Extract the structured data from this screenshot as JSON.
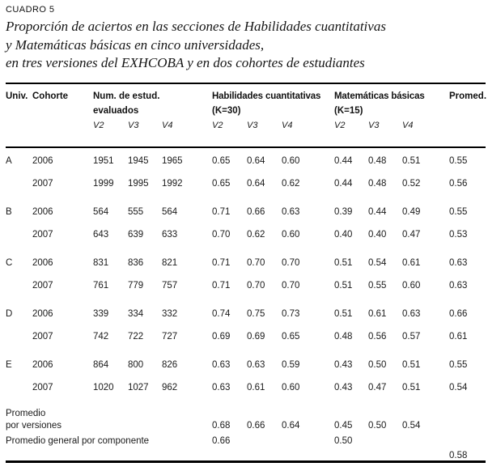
{
  "title": {
    "label": "CUADRO 5",
    "lines": [
      "Proporción de aciertos en las secciones de Habilidades cuantitativas",
      "y Matemáticas básicas en cinco universidades,",
      "en tres versiones del EXHCOBA y en dos cohortes de estudiantes"
    ]
  },
  "table": {
    "header": {
      "univ": "Univ.",
      "cohorte": "Cohorte",
      "num_line1": "Num. de estud.",
      "num_line2": "evaluados",
      "hab_line1": "Habilidades cuantitativas",
      "hab_line2": "(K=30)",
      "mat_line1": "Matemáticas básicas",
      "mat_line2": "(K=15)",
      "promed": "Promed.",
      "versions": [
        "V2",
        "V3",
        "V4"
      ]
    },
    "rows": [
      {
        "univ": "A",
        "cohorte": "2006",
        "num": [
          "1951",
          "1945",
          "1965"
        ],
        "hab": [
          "0.65",
          "0.64",
          "0.60"
        ],
        "mat": [
          "0.44",
          "0.48",
          "0.51"
        ],
        "promed": "0.55"
      },
      {
        "univ": "",
        "cohorte": "2007",
        "num": [
          "1999",
          "1995",
          "1992"
        ],
        "hab": [
          "0.65",
          "0.64",
          "0.62"
        ],
        "mat": [
          "0.44",
          "0.48",
          "0.52"
        ],
        "promed": "0.56"
      },
      {
        "univ": "B",
        "cohorte": "2006",
        "num": [
          "564",
          "555",
          "564"
        ],
        "hab": [
          "0.71",
          "0.66",
          "0.63"
        ],
        "mat": [
          "0.39",
          "0.44",
          "0.49"
        ],
        "promed": "0.55"
      },
      {
        "univ": "",
        "cohorte": "2007",
        "num": [
          "643",
          "639",
          "633"
        ],
        "hab": [
          "0.70",
          "0.62",
          "0.60"
        ],
        "mat": [
          "0.40",
          "0.40",
          "0.47"
        ],
        "promed": "0.53"
      },
      {
        "univ": "C",
        "cohorte": "2006",
        "num": [
          "831",
          "836",
          "821"
        ],
        "hab": [
          "0.71",
          "0.70",
          "0.70"
        ],
        "mat": [
          "0.51",
          "0.54",
          "0.61"
        ],
        "promed": "0.63"
      },
      {
        "univ": "",
        "cohorte": "2007",
        "num": [
          "761",
          "779",
          "757"
        ],
        "hab": [
          "0.71",
          "0.70",
          "0.70"
        ],
        "mat": [
          "0.51",
          "0.55",
          "0.60"
        ],
        "promed": "0.63"
      },
      {
        "univ": "D",
        "cohorte": "2006",
        "num": [
          "339",
          "334",
          "332"
        ],
        "hab": [
          "0.74",
          "0.75",
          "0.73"
        ],
        "mat": [
          "0.51",
          "0.61",
          "0.63"
        ],
        "promed": "0.66"
      },
      {
        "univ": "",
        "cohorte": "2007",
        "num": [
          "742",
          "722",
          "727"
        ],
        "hab": [
          "0.69",
          "0.69",
          "0.65"
        ],
        "mat": [
          "0.48",
          "0.56",
          "0.57"
        ],
        "promed": "0.61"
      },
      {
        "univ": "E",
        "cohorte": "2006",
        "num": [
          "864",
          "800",
          "826"
        ],
        "hab": [
          "0.63",
          "0.63",
          "0.59"
        ],
        "mat": [
          "0.43",
          "0.50",
          "0.51"
        ],
        "promed": "0.55"
      },
      {
        "univ": "",
        "cohorte": "2007",
        "num": [
          "1020",
          "1027",
          "962"
        ],
        "hab": [
          "0.63",
          "0.61",
          "0.60"
        ],
        "mat": [
          "0.43",
          "0.47",
          "0.51"
        ],
        "promed": "0.54"
      }
    ],
    "footer": {
      "promedio_line1": "Promedio",
      "promedio_line2": "por versiones",
      "versiones_hab": [
        "0.68",
        "0.66",
        "0.64"
      ],
      "versiones_mat": [
        "0.45",
        "0.50",
        "0.54"
      ],
      "general_label": "Promedio general por componente",
      "general_hab": "0.66",
      "general_mat": "0.50",
      "overall": "0.58"
    }
  }
}
